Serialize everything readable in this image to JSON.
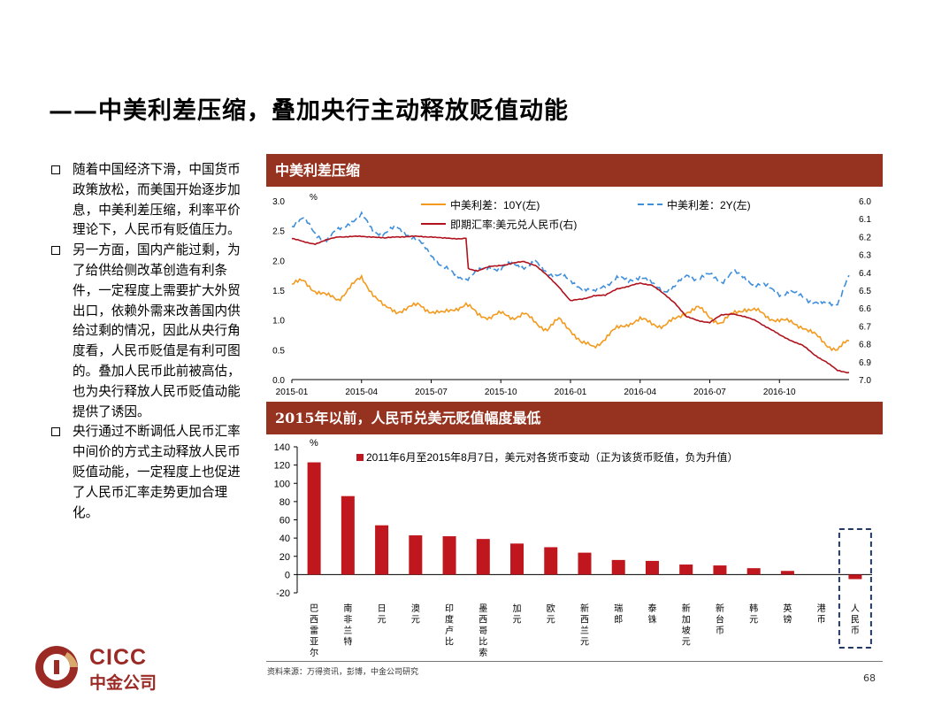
{
  "title": "——中美利差压缩，叠加央行主动释放贬值动能",
  "bullets": [
    "随着中国经济下滑，中国货币政策放松，而美国开始逐步加息，中美利差压缩，利率平价理论下，人民币有贬值压力。",
    "另一方面，国内产能过剩，为了给供给侧改革创造有利条件，一定程度上需要扩大外贸出口，依赖外需来改善国内供给过剩的情况，因此从央行角度看，人民币贬值是有利可图的。叠加人民币此前被高估，也为央行释放人民币贬值动能提供了诱因。",
    "央行通过不断调低人民币汇率中间价的方式主动释放人民币贬值动能，一定程度上也促进了人民币汇率走势更加合理化。"
  ],
  "panel1_title": "中美利差压缩",
  "panel2_title": "2015年以前，人民币兑美元贬值幅度最低",
  "source": "资料来源：万得资讯，彭博，中金公司研究",
  "page_number": "68",
  "logo": {
    "en": "CICC",
    "cn": "中金公司"
  },
  "colors": {
    "header": "#963320",
    "orange": "#F39A1E",
    "blue": "#3D8EDB",
    "red": "#B0131D",
    "bar": "#C0171F",
    "logo": "#9b2a25",
    "highlight": "#1F3864"
  },
  "chart_data": [
    {
      "type": "line",
      "title": "中美利差压缩",
      "y_unit": "%",
      "yleft_lim": [
        0.0,
        3.0
      ],
      "yleft_ticks": [
        "0.0",
        "0.5",
        "1.0",
        "1.5",
        "2.0",
        "2.5",
        "3.0"
      ],
      "yright_lim": [
        6.0,
        7.0
      ],
      "yright_inverted": true,
      "yright_ticks": [
        "6.0",
        "6.1",
        "6.2",
        "6.3",
        "6.4",
        "6.5",
        "6.6",
        "6.7",
        "6.8",
        "6.9",
        "7.0"
      ],
      "x_ticks": [
        "2015-01",
        "2015-04",
        "2015-07",
        "2015-10",
        "2016-01",
        "2016-04",
        "2016-07",
        "2016-10"
      ],
      "x_range_months": [
        0,
        24
      ],
      "legend": [
        "中美利差：10Y(左)",
        "中美利差：2Y(左)",
        "即期汇率:美元兑人民币(右)"
      ],
      "series": [
        {
          "name": "中美利差：10Y(左)",
          "axis": "left",
          "style": "solid",
          "t": [
            0,
            0.5,
            1,
            1.5,
            2,
            2.5,
            3,
            3.5,
            4,
            4.5,
            5,
            5.5,
            6,
            6.5,
            7,
            7.5,
            8,
            8.5,
            9,
            9.5,
            10,
            10.5,
            11,
            11.5,
            12,
            12.5,
            13,
            13.5,
            14,
            14.5,
            15,
            15.5,
            16,
            16.5,
            17,
            17.5,
            18,
            18.5,
            19,
            19.5,
            20,
            20.5,
            21,
            21.5,
            22,
            22.5,
            23,
            23.5,
            24
          ],
          "v": [
            1.6,
            1.65,
            1.5,
            1.4,
            1.35,
            1.55,
            1.7,
            1.45,
            1.2,
            1.15,
            1.2,
            1.25,
            1.15,
            1.1,
            1.2,
            1.25,
            1.1,
            1.05,
            1.1,
            1.05,
            1.1,
            0.95,
            0.85,
            1.0,
            0.85,
            0.6,
            0.55,
            0.7,
            0.85,
            0.95,
            1.0,
            0.95,
            0.9,
            1.0,
            1.15,
            1.2,
            1.05,
            0.95,
            1.1,
            1.2,
            1.15,
            1.05,
            1.0,
            0.95,
            0.9,
            0.75,
            0.6,
            0.5,
            0.65
          ]
        },
        {
          "name": "中美利差：2Y(左)",
          "axis": "left",
          "style": "dashed",
          "t": [
            0,
            0.5,
            1,
            1.5,
            2,
            2.5,
            3,
            3.5,
            4,
            4.5,
            5,
            5.5,
            6,
            6.5,
            7,
            7.5,
            8,
            8.5,
            9,
            9.5,
            10,
            10.5,
            11,
            11.5,
            12,
            12.5,
            13,
            13.5,
            14,
            14.5,
            15,
            15.5,
            16,
            16.5,
            17,
            17.5,
            18,
            18.5,
            19,
            19.5,
            20,
            20.5,
            21,
            21.5,
            22,
            22.5,
            23,
            23.5,
            24
          ],
          "v": [
            2.6,
            2.7,
            2.45,
            2.35,
            2.5,
            2.65,
            2.75,
            2.5,
            2.45,
            2.55,
            2.45,
            2.3,
            2.1,
            1.9,
            1.75,
            1.7,
            1.8,
            1.9,
            1.85,
            1.95,
            1.9,
            1.95,
            1.8,
            1.75,
            1.65,
            1.55,
            1.45,
            1.6,
            1.7,
            1.65,
            1.75,
            1.6,
            1.5,
            1.55,
            1.75,
            1.7,
            1.75,
            1.65,
            1.8,
            1.7,
            1.6,
            1.55,
            1.45,
            1.45,
            1.4,
            1.3,
            1.25,
            1.3,
            1.75
          ]
        },
        {
          "name": "即期汇率:美元兑人民币(右)",
          "axis": "right",
          "style": "solid",
          "t": [
            0,
            0.5,
            1,
            1.5,
            2,
            2.5,
            3,
            3.5,
            4,
            4.5,
            5,
            5.5,
            6,
            6.5,
            7,
            7.5,
            7.6,
            8,
            8.5,
            9,
            9.5,
            10,
            10.5,
            11,
            11.5,
            12,
            12.5,
            13,
            13.5,
            14,
            14.5,
            15,
            15.5,
            16,
            16.5,
            17,
            17.5,
            18,
            18.5,
            19,
            19.5,
            20,
            20.5,
            21,
            21.5,
            22,
            22.5,
            23,
            23.5,
            24
          ],
          "v": [
            6.21,
            6.23,
            6.24,
            6.22,
            6.2,
            6.2,
            6.2,
            6.2,
            6.21,
            6.2,
            6.2,
            6.2,
            6.2,
            6.21,
            6.21,
            6.21,
            6.38,
            6.39,
            6.37,
            6.36,
            6.35,
            6.34,
            6.36,
            6.42,
            6.48,
            6.56,
            6.55,
            6.53,
            6.53,
            6.49,
            6.48,
            6.46,
            6.47,
            6.52,
            6.57,
            6.65,
            6.67,
            6.68,
            6.64,
            6.63,
            6.65,
            6.67,
            6.71,
            6.75,
            6.78,
            6.81,
            6.86,
            6.9,
            6.95,
            6.96
          ]
        }
      ]
    },
    {
      "type": "bar",
      "title": "2015年以前，人民币兑美元贬值幅度最低",
      "y_unit": "%",
      "ylim": [
        -20,
        140
      ],
      "y_ticks": [
        "-20",
        "0",
        "20",
        "40",
        "60",
        "80",
        "100",
        "120",
        "140"
      ],
      "legend": "2011年6月至2015年8月7日，美元对各货币变动（正为该货币贬值，负为升值）",
      "categories": [
        "巴西雷亚尔",
        "南非兰特",
        "日元",
        "澳元",
        "印度卢比",
        "墨西哥比索",
        "加元",
        "欧元",
        "新西兰元",
        "瑞郎",
        "泰铢",
        "新加坡元",
        "新台币",
        "韩元",
        "英镑",
        "港币",
        "人民币"
      ],
      "values": [
        123,
        86,
        54,
        43,
        42,
        39,
        34,
        30,
        24,
        16,
        15,
        11,
        10,
        7,
        4,
        0,
        -5
      ],
      "highlight": "人民币"
    }
  ]
}
